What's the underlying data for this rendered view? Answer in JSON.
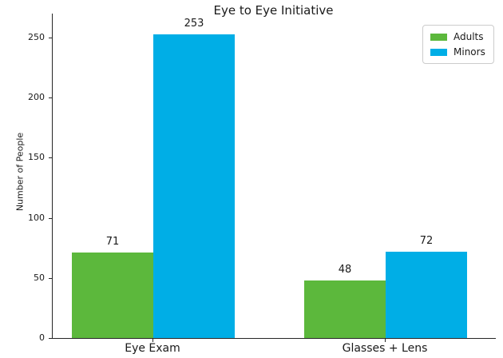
{
  "figure": {
    "background": "#ffffff",
    "axis_color": "#262626",
    "text_color": "#1a1a1a"
  },
  "chart_data": {
    "type": "bar",
    "title": "Eye to Eye Initiative",
    "xlabel": "",
    "ylabel": "Number of People",
    "categories": [
      "Eye Exam",
      "Glasses + Lens"
    ],
    "series": [
      {
        "name": "Adults",
        "color": "#5cb83c",
        "values": [
          71,
          48
        ]
      },
      {
        "name": "Minors",
        "color": "#00aee6",
        "values": [
          253,
          72
        ]
      }
    ],
    "value_labels": [
      [
        "71",
        "253"
      ],
      [
        "48",
        "72"
      ]
    ],
    "yticks": [
      "0",
      "50",
      "100",
      "150",
      "200",
      "250"
    ],
    "ytick_values": [
      0,
      50,
      100,
      150,
      200,
      250
    ],
    "ylim": [
      0,
      270
    ],
    "grid": false,
    "legend_position": "upper right"
  }
}
